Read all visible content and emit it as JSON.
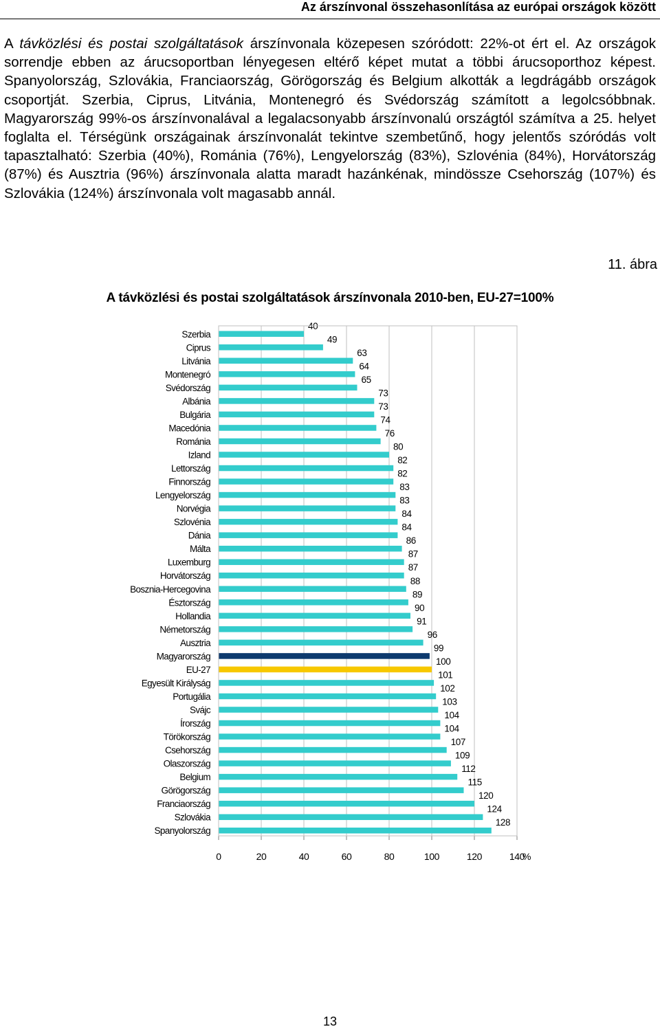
{
  "header": {
    "title": "Az árszínvonal összehasonlítása az európai országok között"
  },
  "body": {
    "paragraph_lead_plain": "A ",
    "paragraph_lead_italic": "távközlési és postai szolgáltatások",
    "paragraph_rest": " árszínvonala közepesen szóródott: 22%-ot ért el. Az országok sorrendje ebben az árucsoportban lényegesen eltérő képet mutat a többi árucsoporthoz képest. Spanyolország, Szlovákia, Franciaország, Görögország és Belgium alkották a legdrágább országok csoportját. Szerbia, Ciprus, Litvánia, Montenegró és Svédország számított a legolcsóbbnak. Magyarország 99%-os árszínvonalával a legalacsonyabb árszínvonalú országtól számítva a 25. helyet foglalta el. Térségünk országainak árszínvonalát tekintve szembetűnő, hogy jelentős szóródás volt tapasztalható: Szerbia (40%), Románia (76%), Lengyelország (83%), Szlovénia (84%), Horvátország (87%) és Ausztria (96%) árszínvonala alatta maradt hazánkénak, mindössze Csehország (107%) és Szlovákia (124%) árszínvonala volt magasabb annál."
  },
  "figure": {
    "number": "11. ábra",
    "title": "A távközlési és postai szolgáltatások árszínvonala 2010-ben, EU-27=100%"
  },
  "chart_data": {
    "type": "bar",
    "orientation": "horizontal",
    "categories": [
      "Szerbia",
      "Ciprus",
      "Litvánia",
      "Montenegró",
      "Svédország",
      "Albánia",
      "Bulgária",
      "Macedónia",
      "Románia",
      "Izland",
      "Lettország",
      "Finnország",
      "Lengyelország",
      "Norvégia",
      "Szlovénia",
      "Dánia",
      "Málta",
      "Luxemburg",
      "Horvátország",
      "Bosznia-Hercegovina",
      "Észtország",
      "Hollandia",
      "Németország",
      "Ausztria",
      "Magyarország",
      "EU-27",
      "Egyesült Királyság",
      "Portugália",
      "Svájc",
      "Írország",
      "Törökország",
      "Csehország",
      "Olaszország",
      "Belgium",
      "Görögország",
      "Franciaország",
      "Szlovákia",
      "Spanyolország"
    ],
    "values": [
      40,
      49,
      63,
      64,
      65,
      73,
      73,
      74,
      76,
      80,
      82,
      82,
      83,
      83,
      84,
      84,
      86,
      87,
      87,
      88,
      89,
      90,
      91,
      96,
      99,
      100,
      101,
      102,
      103,
      104,
      104,
      107,
      109,
      112,
      115,
      120,
      124,
      128
    ],
    "highlight": {
      "Magyarország": "#0d3a6e",
      "EU-27": "#f7c800"
    },
    "bar_color": "#33cccc",
    "xlim": [
      0,
      140
    ],
    "xticks": [
      0,
      20,
      40,
      60,
      80,
      100,
      120,
      140
    ],
    "xlabel": "%",
    "grid": true
  },
  "footer": {
    "page_number": "13"
  }
}
